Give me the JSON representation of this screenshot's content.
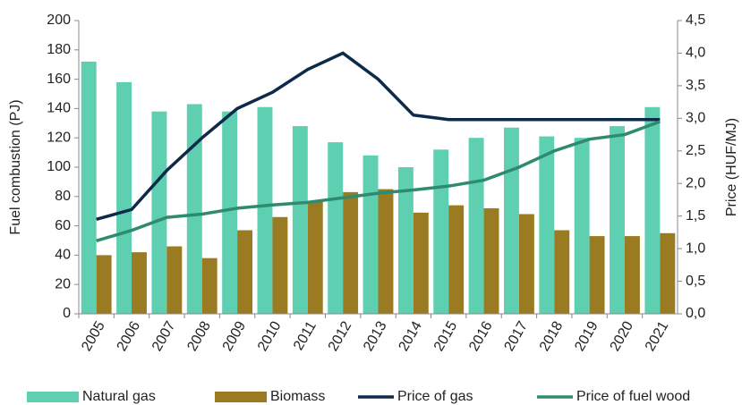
{
  "chart_data": {
    "type": "bar",
    "y_label": "Fuel combustion (PJ)",
    "y2_label": "Price (HUF/MJ)",
    "categories": [
      "2005",
      "2006",
      "2007",
      "2008",
      "2009",
      "2010",
      "2011",
      "2012",
      "2013",
      "2014",
      "2015",
      "2016",
      "2017",
      "2018",
      "2019",
      "2020",
      "2021"
    ],
    "series": [
      {
        "name": "Natural gas",
        "type": "bar",
        "color": "#5ecfb0",
        "values": [
          172,
          158,
          138,
          143,
          138,
          141,
          128,
          117,
          108,
          100,
          112,
          120,
          127,
          121,
          120,
          128,
          141
        ]
      },
      {
        "name": "Biomass",
        "type": "bar",
        "color": "#9a7b22",
        "values": [
          40,
          42,
          46,
          38,
          57,
          66,
          77,
          83,
          85,
          69,
          74,
          72,
          68,
          57,
          53,
          53,
          55
        ]
      },
      {
        "name": "Price of gas",
        "type": "line",
        "axis": "y2",
        "color": "#0d2a4a",
        "values": [
          1.45,
          1.6,
          2.2,
          2.7,
          3.15,
          3.4,
          3.75,
          4.0,
          3.6,
          3.05,
          2.98,
          2.98,
          2.98,
          2.98,
          2.98,
          2.98,
          2.98
        ]
      },
      {
        "name": "Price of fuel wood",
        "type": "line",
        "axis": "y2",
        "color": "#2e8b6e",
        "values": [
          1.12,
          1.28,
          1.48,
          1.53,
          1.62,
          1.67,
          1.71,
          1.78,
          1.85,
          1.9,
          1.96,
          2.05,
          2.25,
          2.5,
          2.68,
          2.75,
          2.95
        ]
      }
    ],
    "ylim": [
      0,
      200
    ],
    "yticks": [
      0,
      20,
      40,
      60,
      80,
      100,
      120,
      140,
      160,
      180,
      200
    ],
    "y2lim": [
      0,
      4.5
    ],
    "y2ticks": [
      {
        "value": 0,
        "label": "0,0"
      },
      {
        "value": 0.5,
        "label": "0,5"
      },
      {
        "value": 1,
        "label": "1,0"
      },
      {
        "value": 1.5,
        "label": "1,5"
      },
      {
        "value": 2,
        "label": "2,0"
      },
      {
        "value": 2.5,
        "label": "2,5"
      },
      {
        "value": 3,
        "label": "3,0"
      },
      {
        "value": 3.5,
        "label": "3,5"
      },
      {
        "value": 4,
        "label": "4,0"
      },
      {
        "value": 4.5,
        "label": "4,5"
      }
    ],
    "grid": false,
    "legend": "bottom"
  }
}
